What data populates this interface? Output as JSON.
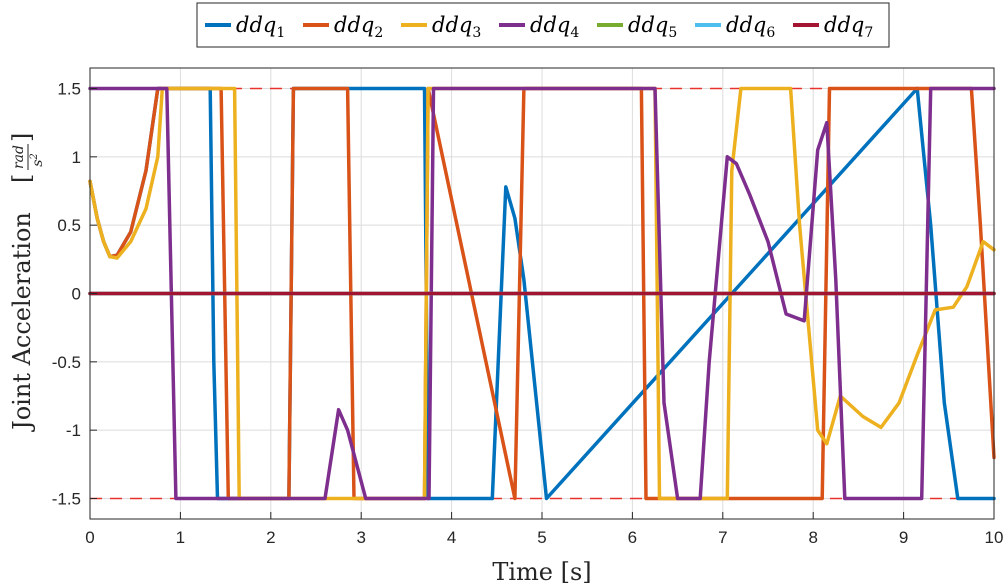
{
  "chart_data": {
    "type": "line",
    "title": "",
    "xlabel": "Time [s]",
    "ylabel": {
      "main": "Joint Acceleration",
      "unit_num": "rad",
      "unit_den": "s",
      "unit_den_exp": "2"
    },
    "xlim": [
      0,
      10
    ],
    "ylim": [
      -1.65,
      1.65
    ],
    "xticks": [
      0,
      1,
      2,
      3,
      4,
      5,
      6,
      7,
      8,
      9,
      10
    ],
    "xtick_labels": [
      "0",
      "1",
      "2",
      "3",
      "4",
      "5",
      "6",
      "7",
      "8",
      "9",
      "10"
    ],
    "yticks": [
      -1.5,
      -1,
      -0.5,
      0,
      0.5,
      1,
      1.5
    ],
    "ytick_labels": [
      "-1.5",
      "-1",
      "-0.5",
      "0",
      "0.5",
      "1",
      "1.5"
    ],
    "grid": true,
    "legend_position": "top-center-outside",
    "limit_lines": [
      {
        "y": 1.5,
        "color": "#e8322e"
      },
      {
        "y": -1.5,
        "color": "#e8322e"
      }
    ],
    "series": [
      {
        "name": "ddq",
        "subscript": "1",
        "color": "#0072BD",
        "x": [
          0,
          0.08,
          0.15,
          0.22,
          0.3,
          0.45,
          0.62,
          0.75,
          0.8,
          1.33,
          1.37,
          1.41,
          1.45,
          2.2,
          2.25,
          3.7,
          3.74,
          4.45,
          4.6,
          4.7,
          4.8,
          5.05,
          9.15,
          9.3,
          9.45,
          9.6,
          10
        ],
        "y": [
          0.82,
          0.55,
          0.38,
          0.27,
          0.28,
          0.45,
          0.9,
          1.5,
          1.5,
          1.5,
          -0.5,
          -1.5,
          -1.5,
          -1.5,
          1.5,
          1.5,
          -1.5,
          -1.5,
          0.78,
          0.55,
          0.1,
          -1.5,
          1.5,
          0.5,
          -0.8,
          -1.5,
          -1.5
        ]
      },
      {
        "name": "ddq",
        "subscript": "2",
        "color": "#D95319",
        "x": [
          0,
          0.08,
          0.15,
          0.22,
          0.3,
          0.45,
          0.62,
          0.75,
          0.8,
          1.45,
          1.53,
          1.58,
          2.2,
          2.25,
          2.85,
          2.92,
          3.7,
          3.74,
          4.7,
          4.8,
          6.1,
          6.15,
          8.1,
          8.18,
          9.75,
          9.85,
          10
        ],
        "y": [
          0.82,
          0.55,
          0.38,
          0.27,
          0.28,
          0.45,
          0.9,
          1.5,
          1.5,
          1.5,
          -1.5,
          -1.5,
          -1.5,
          1.5,
          1.5,
          -1.5,
          -1.5,
          1.5,
          -1.5,
          1.5,
          1.5,
          -1.5,
          -1.5,
          1.5,
          1.5,
          0.5,
          -1.2
        ]
      },
      {
        "name": "ddq",
        "subscript": "3",
        "color": "#EDB120",
        "x": [
          0,
          0.08,
          0.15,
          0.22,
          0.3,
          0.45,
          0.62,
          0.75,
          0.8,
          1.6,
          1.65,
          3.7,
          3.74,
          6.25,
          6.3,
          7.05,
          7.1,
          7.2,
          7.75,
          7.85,
          8.05,
          8.15,
          8.3,
          8.55,
          8.75,
          8.95,
          9.15,
          9.35,
          9.55,
          9.7,
          9.88,
          10
        ],
        "y": [
          0.82,
          0.55,
          0.38,
          0.27,
          0.26,
          0.38,
          0.62,
          1.0,
          1.5,
          1.5,
          -1.5,
          -1.5,
          1.5,
          1.5,
          -1.5,
          -1.5,
          0.9,
          1.5,
          1.5,
          0.5,
          -1.0,
          -1.1,
          -0.75,
          -0.9,
          -0.98,
          -0.8,
          -0.45,
          -0.12,
          -0.1,
          0.05,
          0.38,
          0.32
        ]
      },
      {
        "name": "ddq",
        "subscript": "4",
        "color": "#7E2F8E",
        "x": [
          0,
          0.85,
          0.95,
          1.0,
          2.6,
          2.75,
          2.85,
          3.05,
          3.1,
          3.75,
          3.8,
          6.25,
          6.35,
          6.5,
          6.6,
          6.75,
          6.85,
          7.05,
          7.15,
          7.3,
          7.5,
          7.7,
          7.9,
          8.05,
          8.15,
          8.25,
          8.35,
          8.45,
          9.2,
          9.3,
          10
        ],
        "y": [
          1.5,
          1.5,
          -1.5,
          -1.5,
          -1.5,
          -0.85,
          -1.0,
          -1.5,
          -1.5,
          -1.5,
          1.5,
          1.5,
          -0.8,
          -1.5,
          -1.5,
          -1.5,
          -0.5,
          1.0,
          0.95,
          0.72,
          0.38,
          -0.15,
          -0.2,
          1.05,
          1.25,
          0.1,
          -1.5,
          -1.5,
          -1.5,
          1.5,
          1.5
        ]
      },
      {
        "name": "ddq",
        "subscript": "5",
        "color": "#77AC30",
        "x": [
          0,
          10
        ],
        "y": [
          0,
          0
        ]
      },
      {
        "name": "ddq",
        "subscript": "6",
        "color": "#4DBEEE",
        "x": [
          0,
          10
        ],
        "y": [
          0,
          0
        ]
      },
      {
        "name": "ddq",
        "subscript": "7",
        "color": "#A2142F",
        "x": [
          0,
          10
        ],
        "y": [
          0,
          0
        ]
      }
    ]
  }
}
